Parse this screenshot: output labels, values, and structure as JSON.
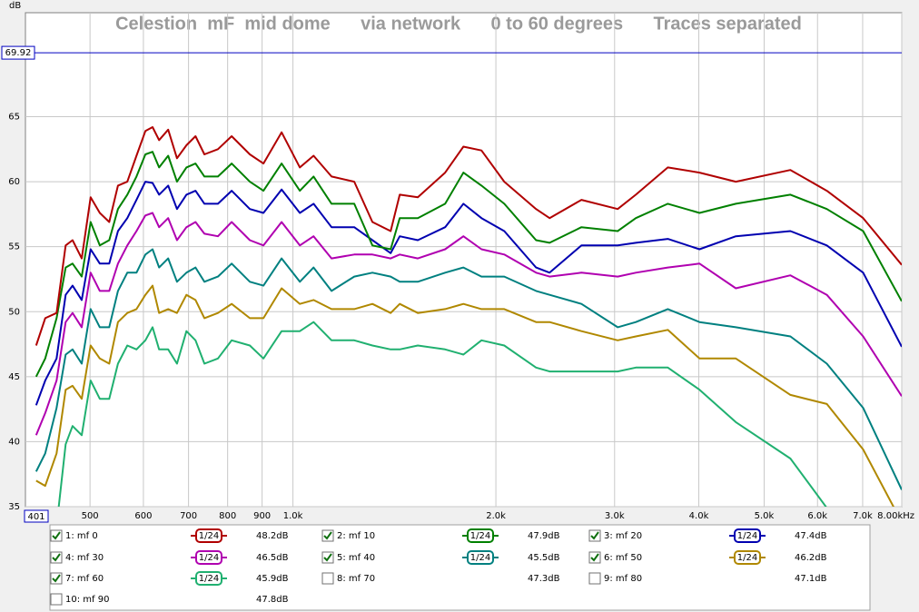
{
  "chart_data": {
    "type": "line",
    "title": "Celestion  mF  mid dome      via network      0 to 60 degrees      Traces separated",
    "y_label": "dB",
    "log_x": true,
    "grid": true,
    "xlim": [
      401,
      8000
    ],
    "ylim": [
      35,
      73
    ],
    "cursor_y": 69.92,
    "xticks": [
      500,
      600,
      700,
      800,
      900,
      {
        "value": 1000,
        "label": "1.0k"
      },
      {
        "value": 2000,
        "label": "2.0k"
      },
      {
        "value": 3000,
        "label": "3.0k"
      },
      {
        "value": 4000,
        "label": "4.0k"
      },
      {
        "value": 5000,
        "label": "5.0k"
      },
      {
        "value": 6000,
        "label": "6.0k"
      },
      {
        "value": 7000,
        "label": "7.0k"
      },
      {
        "value": 8000,
        "label": "8.00kHz"
      }
    ],
    "yticks": [
      35,
      40,
      45,
      50,
      55,
      60,
      65
    ],
    "x": [
      416,
      429,
      446,
      460,
      471,
      486,
      501,
      517,
      534,
      550,
      568,
      586,
      604,
      619,
      633,
      653,
      673,
      695,
      717,
      739,
      774,
      811,
      863,
      904,
      962,
      1024,
      1073,
      1141,
      1233,
      1312,
      1396,
      1440,
      1532,
      1682,
      1790,
      1904,
      2058,
      2294,
      2403,
      2679,
      3032,
      3226,
      3598,
      4010,
      4539,
      5469,
      6193,
      7012,
      8000
    ],
    "series": [
      {
        "name": "1: mf 0",
        "color": "#b00000",
        "visible": true,
        "smoothing": "1/24",
        "level": "48.2dB",
        "values": [
          47.4,
          49.5,
          49.9,
          55.1,
          55.5,
          54.1,
          58.8,
          57.6,
          56.9,
          59.7,
          60.0,
          62.0,
          63.9,
          64.2,
          63.2,
          64.0,
          61.8,
          62.8,
          63.5,
          62.1,
          62.5,
          63.5,
          62.1,
          61.4,
          63.8,
          61.1,
          62.0,
          60.4,
          60.0,
          56.9,
          56.2,
          59.0,
          58.8,
          60.7,
          62.7,
          62.4,
          60.0,
          57.9,
          57.2,
          58.6,
          57.9,
          59.0,
          61.1,
          60.7,
          60.0,
          60.9,
          59.3,
          57.2,
          53.6
        ]
      },
      {
        "name": "2: mf 10",
        "color": "#008000",
        "visible": true,
        "smoothing": "1/24",
        "level": "47.9dB",
        "values": [
          45.0,
          46.4,
          49.5,
          53.4,
          53.7,
          52.7,
          56.9,
          55.1,
          55.5,
          57.9,
          59.0,
          60.4,
          62.1,
          62.3,
          61.1,
          62.0,
          60.0,
          61.1,
          61.4,
          60.4,
          60.4,
          61.4,
          60.0,
          59.3,
          61.4,
          59.3,
          60.4,
          58.3,
          58.3,
          55.1,
          54.8,
          57.2,
          57.2,
          58.3,
          60.7,
          59.7,
          58.3,
          55.5,
          55.3,
          56.5,
          56.2,
          57.2,
          58.3,
          57.6,
          58.3,
          59.0,
          57.9,
          56.2,
          50.8
        ]
      },
      {
        "name": "3: mf 20",
        "color": "#0000b0",
        "visible": true,
        "smoothing": "1/24",
        "level": "47.4dB",
        "values": [
          42.8,
          44.7,
          46.4,
          51.3,
          52.0,
          50.9,
          54.8,
          53.7,
          53.7,
          56.2,
          57.2,
          58.6,
          60.0,
          59.9,
          59.0,
          59.7,
          57.9,
          59.0,
          59.3,
          58.3,
          58.3,
          59.3,
          57.9,
          57.6,
          59.4,
          57.6,
          58.3,
          56.5,
          56.5,
          55.5,
          54.5,
          55.8,
          55.5,
          56.5,
          58.3,
          57.2,
          56.2,
          53.4,
          53.0,
          55.1,
          55.1,
          55.3,
          55.6,
          54.8,
          55.8,
          56.2,
          55.1,
          53.0,
          47.3
        ]
      },
      {
        "name": "4: mf 30",
        "color": "#b000b0",
        "visible": true,
        "smoothing": "1/24",
        "level": "46.5dB",
        "values": [
          40.5,
          42.2,
          44.7,
          49.2,
          49.9,
          48.8,
          53.0,
          51.6,
          51.6,
          53.7,
          55.1,
          56.2,
          57.4,
          57.6,
          56.5,
          57.2,
          55.5,
          56.5,
          56.9,
          56.0,
          55.8,
          56.9,
          55.5,
          55.1,
          56.9,
          55.1,
          55.8,
          54.1,
          54.4,
          54.4,
          54.1,
          54.4,
          54.1,
          54.8,
          55.8,
          54.8,
          54.4,
          53.0,
          52.7,
          53.0,
          52.7,
          53.0,
          53.4,
          53.7,
          51.8,
          52.8,
          51.3,
          48.1,
          43.5
        ]
      },
      {
        "name": "5: mf 40",
        "color": "#008080",
        "visible": true,
        "smoothing": "1/24",
        "level": "45.5dB",
        "values": [
          37.7,
          39.1,
          42.6,
          46.7,
          47.1,
          46.0,
          50.2,
          48.8,
          48.8,
          51.6,
          53.0,
          53.0,
          54.4,
          54.8,
          53.4,
          54.1,
          52.3,
          53.0,
          53.4,
          52.3,
          52.7,
          53.7,
          52.3,
          52.0,
          54.1,
          52.3,
          53.4,
          51.6,
          52.7,
          53.0,
          52.7,
          52.3,
          52.3,
          53.0,
          53.4,
          52.7,
          52.7,
          51.6,
          51.3,
          50.6,
          48.8,
          49.2,
          50.2,
          49.2,
          48.8,
          48.1,
          46.0,
          42.6,
          36.3
        ]
      },
      {
        "name": "6: mf 50",
        "color": "#b08800",
        "visible": true,
        "smoothing": "1/24",
        "level": "46.2dB",
        "values": [
          37.0,
          36.6,
          39.1,
          44.0,
          44.3,
          43.3,
          47.4,
          46.4,
          46.0,
          49.2,
          49.9,
          50.2,
          51.3,
          52.0,
          49.9,
          50.2,
          49.9,
          51.3,
          50.9,
          49.5,
          49.9,
          50.6,
          49.5,
          49.5,
          51.8,
          50.6,
          50.9,
          50.2,
          50.2,
          50.6,
          49.9,
          50.6,
          49.9,
          50.2,
          50.6,
          50.2,
          50.2,
          49.2,
          49.2,
          48.5,
          47.8,
          48.1,
          48.6,
          46.4,
          46.4,
          43.6,
          42.9,
          39.4,
          33.8
        ]
      },
      {
        "name": "7: mf 60",
        "color": "#20b070",
        "visible": true,
        "smoothing": "1/24",
        "level": "45.9dB",
        "values": [
          null,
          null,
          33.5,
          39.8,
          41.2,
          40.5,
          44.7,
          43.3,
          43.3,
          46.0,
          47.4,
          47.1,
          47.8,
          48.8,
          47.1,
          47.1,
          46.0,
          48.5,
          47.8,
          46.0,
          46.4,
          47.8,
          47.4,
          46.4,
          48.5,
          48.5,
          49.2,
          47.8,
          47.8,
          47.4,
          47.1,
          47.1,
          47.4,
          47.1,
          46.7,
          47.8,
          47.4,
          45.7,
          45.4,
          45.4,
          45.4,
          45.7,
          45.7,
          44.0,
          41.5,
          38.7,
          34.9,
          30.7,
          null
        ]
      },
      {
        "name": "8: mf 70",
        "color": "#804090",
        "visible": false,
        "level": "47.3dB"
      },
      {
        "name": "9: mf 80",
        "color": "#a03090",
        "visible": false,
        "level": "47.1dB"
      },
      {
        "name": "10: mf 90",
        "color": "#306080",
        "visible": false,
        "level": "47.8dB"
      }
    ]
  }
}
